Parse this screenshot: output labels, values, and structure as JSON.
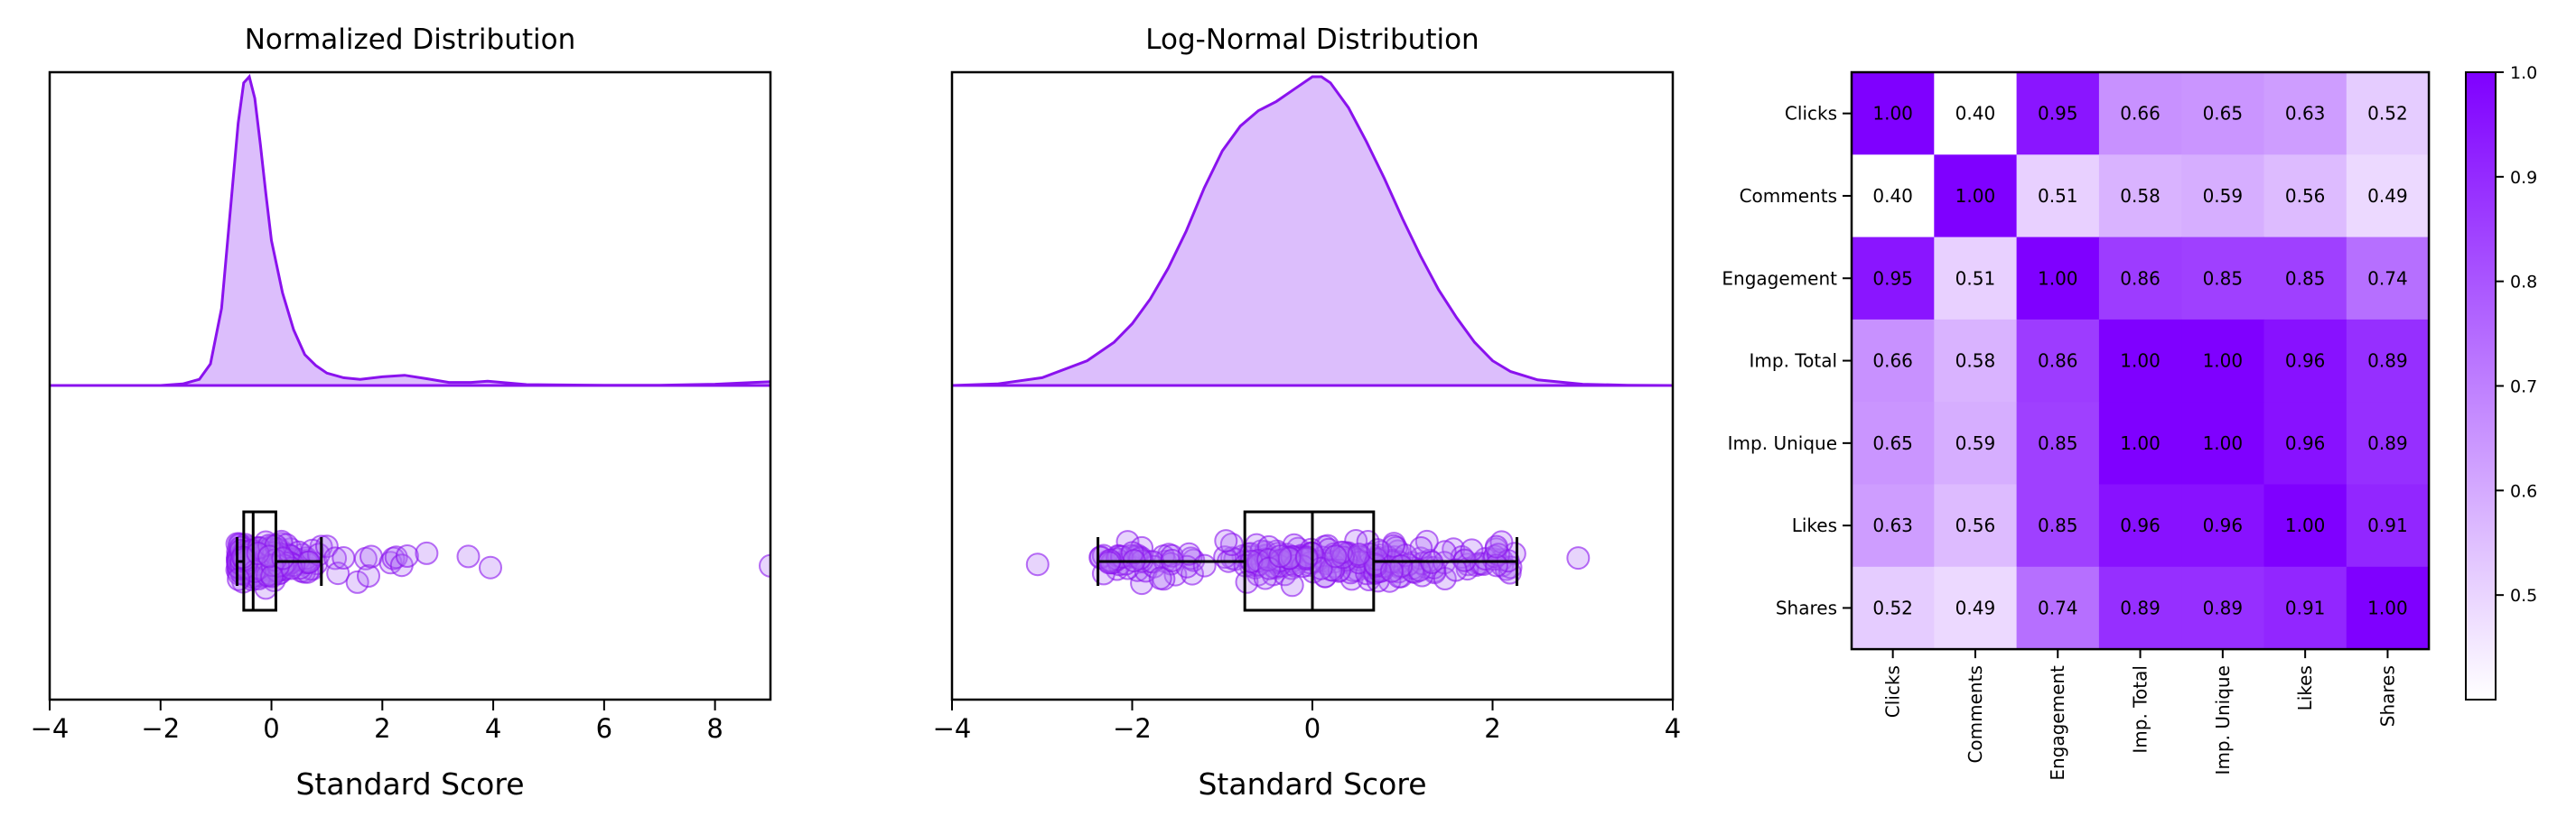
{
  "chart_data": [
    {
      "type": "area",
      "title": "Normalized Distribution",
      "xlabel": "Standard Score",
      "ylabel": "",
      "xlim": [
        -4,
        9
      ],
      "xticks": [
        -4,
        -2,
        0,
        2,
        4,
        6,
        8
      ],
      "density_x": [
        -4,
        -2,
        -1.6,
        -1.3,
        -1.1,
        -0.9,
        -0.75,
        -0.6,
        -0.5,
        -0.4,
        -0.3,
        -0.2,
        -0.1,
        0,
        0.2,
        0.4,
        0.6,
        0.8,
        1,
        1.3,
        1.6,
        2,
        2.4,
        2.8,
        3.2,
        3.6,
        3.9,
        4.2,
        4.6,
        5,
        6,
        7,
        8,
        8.7,
        9
      ],
      "density_y": [
        0,
        0,
        0.005,
        0.02,
        0.07,
        0.25,
        0.55,
        0.85,
        0.98,
        1.0,
        0.93,
        0.78,
        0.62,
        0.47,
        0.3,
        0.18,
        0.1,
        0.065,
        0.04,
        0.025,
        0.02,
        0.028,
        0.033,
        0.022,
        0.01,
        0.01,
        0.014,
        0.009,
        0.003,
        0.002,
        0.001,
        0.001,
        0.004,
        0.01,
        0.012
      ],
      "box": {
        "whisker_low": -0.62,
        "q1": -0.5,
        "median": -0.33,
        "q3": 0.08,
        "whisker_high": 0.9
      },
      "outliers": [
        1.0,
        1.15,
        1.2,
        1.3,
        1.55,
        1.7,
        1.75,
        1.8,
        2.15,
        2.2,
        2.25,
        2.35,
        2.45,
        2.8,
        3.55,
        3.95,
        9.0
      ]
    },
    {
      "type": "area",
      "title": "Log-Normal Distribution",
      "xlabel": "Standard Score",
      "ylabel": "",
      "xlim": [
        -4,
        4
      ],
      "xticks": [
        -4,
        -2,
        0,
        2,
        4
      ],
      "density_x": [
        -4,
        -3.5,
        -3,
        -2.5,
        -2.2,
        -2,
        -1.8,
        -1.6,
        -1.4,
        -1.2,
        -1,
        -0.8,
        -0.6,
        -0.4,
        -0.2,
        0,
        0.1,
        0.2,
        0.4,
        0.6,
        0.8,
        1,
        1.2,
        1.4,
        1.6,
        1.8,
        2,
        2.2,
        2.5,
        3,
        3.5,
        4
      ],
      "density_y": [
        0,
        0.005,
        0.025,
        0.08,
        0.14,
        0.2,
        0.28,
        0.38,
        0.5,
        0.64,
        0.76,
        0.84,
        0.89,
        0.92,
        0.96,
        1.0,
        1.0,
        0.98,
        0.9,
        0.79,
        0.67,
        0.54,
        0.42,
        0.31,
        0.22,
        0.14,
        0.08,
        0.045,
        0.018,
        0.004,
        0.001,
        0
      ],
      "box": {
        "whisker_low": -2.38,
        "q1": -0.75,
        "median": 0.0,
        "q3": 0.68,
        "whisker_high": 2.27
      },
      "outliers": [
        -3.05,
        2.95
      ]
    },
    {
      "type": "heatmap",
      "title": "",
      "labels": [
        "Clicks",
        "Comments",
        "Engagement",
        "Imp. Total",
        "Imp. Unique",
        "Likes",
        "Shares"
      ],
      "matrix": [
        [
          "1.00",
          "0.40",
          "0.95",
          "0.66",
          "0.65",
          "0.63",
          "0.52"
        ],
        [
          "0.40",
          "1.00",
          "0.51",
          "0.58",
          "0.59",
          "0.56",
          "0.49"
        ],
        [
          "0.95",
          "0.51",
          "1.00",
          "0.86",
          "0.85",
          "0.85",
          "0.74"
        ],
        [
          "0.66",
          "0.58",
          "0.86",
          "1.00",
          "1.00",
          "0.96",
          "0.89"
        ],
        [
          "0.65",
          "0.59",
          "0.85",
          "1.00",
          "1.00",
          "0.96",
          "0.89"
        ],
        [
          "0.63",
          "0.56",
          "0.85",
          "0.96",
          "0.96",
          "1.00",
          "0.91"
        ],
        [
          "0.52",
          "0.49",
          "0.74",
          "0.89",
          "0.89",
          "0.91",
          "1.00"
        ]
      ],
      "colorbar": {
        "vmin": 0.4,
        "vmax": 1.0,
        "ticks": [
          "0.5",
          "0.6",
          "0.7",
          "0.8",
          "0.9",
          "1.0"
        ]
      }
    }
  ],
  "colors": {
    "accent": "#8a12ee",
    "fill": "#dcbefc",
    "point": "#b070f4",
    "heat_low": "#ffffff",
    "heat_high": "#7f00ff"
  }
}
